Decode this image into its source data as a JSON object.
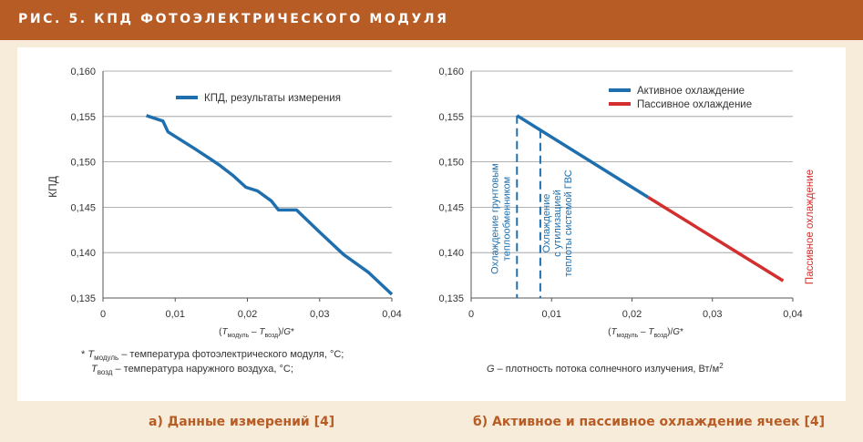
{
  "header": {
    "title": "РИС. 5. КПД ФОТОЭЛЕКТРИЧЕСКОГО МОДУЛЯ"
  },
  "colors": {
    "header_bg": "#b85c26",
    "active": "#1f6fae",
    "passive": "#d32f2f",
    "background": "#f7ecd9"
  },
  "captions": {
    "a": "а) Данные измерений [4]",
    "b": "б) Активное и пассивное охлаждение ячеек [4]"
  },
  "footnotes": {
    "a_line1": "* T модуль – температура фотоэлектрического модуля, °C;",
    "a_line2": "T возд – температура наружного воздуха, °C;",
    "b": "G – плотность потока солнечного излучения, Вт/м²"
  },
  "chart_data": [
    {
      "type": "line",
      "title": "",
      "xlabel": "(Tмодуль – Tвозд)/G*",
      "ylabel": "КПД",
      "xlim": [
        0,
        0.04
      ],
      "ylim": [
        0.135,
        0.16
      ],
      "xticks": [
        "0",
        "0,01",
        "0,02",
        "0,03",
        "0,04"
      ],
      "yticks": [
        "0,135",
        "0,140",
        "0,145",
        "0,150",
        "0,155",
        "0,160"
      ],
      "grid": "horizontal",
      "legend": "top-right",
      "series": [
        {
          "name": "КПД, результаты измерения",
          "color": "#1f6fae",
          "x": [
            0.006,
            0.0083,
            0.009,
            0.0104,
            0.0126,
            0.0149,
            0.0162,
            0.018,
            0.0198,
            0.0214,
            0.0233,
            0.0243,
            0.0268,
            0.0298,
            0.0333,
            0.0368,
            0.04
          ],
          "y": [
            0.1551,
            0.1545,
            0.1533,
            0.1526,
            0.1515,
            0.1503,
            0.1496,
            0.1485,
            0.1472,
            0.1468,
            0.1457,
            0.1447,
            0.1447,
            0.1424,
            0.1398,
            0.1378,
            0.1354
          ]
        }
      ]
    },
    {
      "type": "line",
      "title": "",
      "xlabel": "(Tмодуль – Tвозд)/G*",
      "ylabel": "",
      "xlim": [
        0,
        0.04
      ],
      "ylim": [
        0.135,
        0.16
      ],
      "xticks": [
        "0",
        "0,01",
        "0,02",
        "0,03",
        "0,04"
      ],
      "yticks": [
        "0,135",
        "0,140",
        "0,145",
        "0,150",
        "0,155",
        "0,160"
      ],
      "grid": "horizontal",
      "legend": "top-right",
      "series": [
        {
          "name": "Активное охлаждение",
          "color": "#1f6fae",
          "x": [
            0.0057,
            0.022
          ],
          "y": [
            0.1551,
            0.1461
          ]
        },
        {
          "name": "Пассивное охлаждение",
          "color": "#d32f2f",
          "x": [
            0.022,
            0.0388
          ],
          "y": [
            0.1461,
            0.1369
          ]
        }
      ],
      "markers": [
        {
          "x": 0.0057,
          "label": "Охлаждение грунтовым теплообменником"
        },
        {
          "x": 0.0086,
          "label": "Охлаждение с утилизацией теплоты системой ГВС"
        }
      ],
      "side_annotation": "Пассивное охлаждение"
    }
  ]
}
